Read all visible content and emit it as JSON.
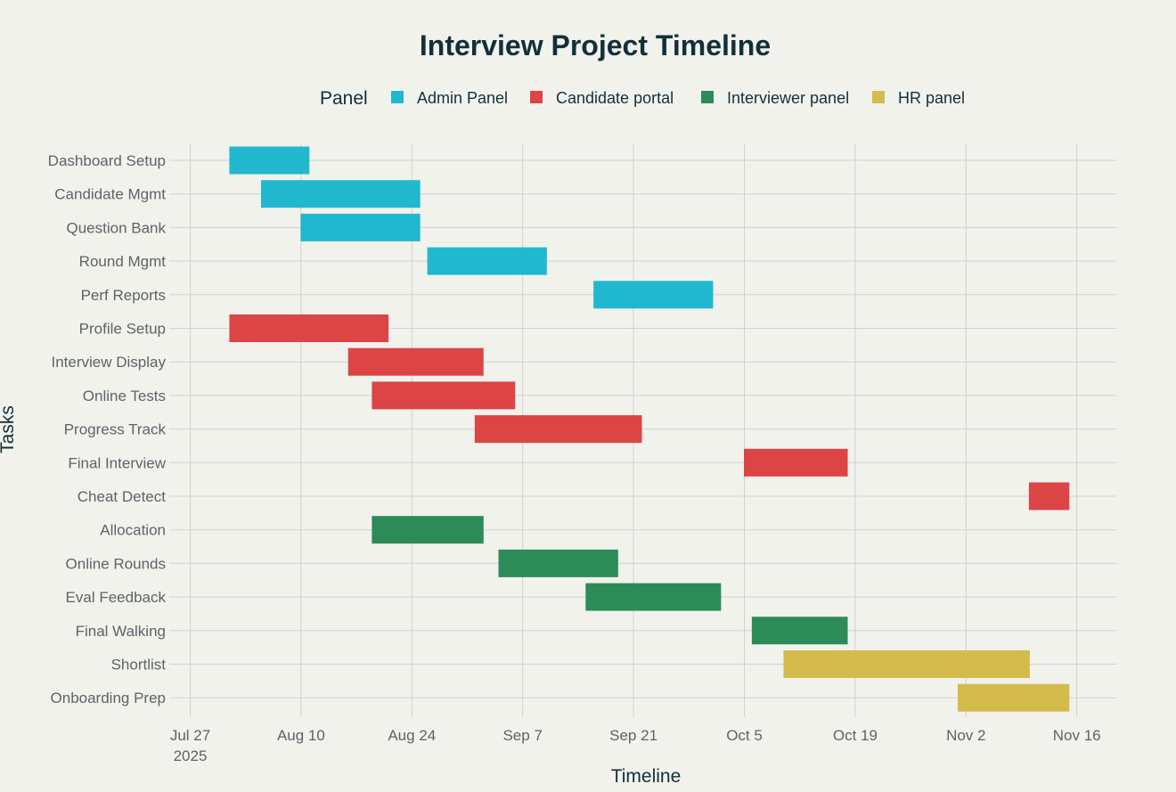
{
  "chart_data": {
    "type": "gantt",
    "title": "Interview Project Timeline",
    "xlabel": "Timeline",
    "ylabel": "Tasks",
    "legend": {
      "title": "Panel",
      "placement": "top",
      "items": [
        {
          "name": "Admin Panel",
          "color": "#21b8cf"
        },
        {
          "name": "Candidate portal",
          "color": "#dc4446"
        },
        {
          "name": "Interviewer panel",
          "color": "#2d8b57"
        },
        {
          "name": "HR panel",
          "color": "#d4bb4e"
        }
      ]
    },
    "x_ticks": [
      {
        "date": "2025-07-27",
        "label": "Jul 27",
        "sublabel": "2025"
      },
      {
        "date": "2025-08-10",
        "label": "Aug 10"
      },
      {
        "date": "2025-08-24",
        "label": "Aug 24"
      },
      {
        "date": "2025-09-07",
        "label": "Sep 7"
      },
      {
        "date": "2025-09-21",
        "label": "Sep 21"
      },
      {
        "date": "2025-10-05",
        "label": "Oct 5"
      },
      {
        "date": "2025-10-19",
        "label": "Oct 19"
      },
      {
        "date": "2025-11-02",
        "label": "Nov 2"
      },
      {
        "date": "2025-11-16",
        "label": "Nov 16"
      }
    ],
    "xlim": [
      "2025-07-25",
      "2025-11-21"
    ],
    "grid": true,
    "tasks": [
      {
        "task": "Dashboard Setup",
        "panel": "Admin Panel",
        "start": "2025-08-01",
        "end": "2025-08-11"
      },
      {
        "task": "Candidate Mgmt",
        "panel": "Admin Panel",
        "start": "2025-08-05",
        "end": "2025-08-25"
      },
      {
        "task": "Question Bank",
        "panel": "Admin Panel",
        "start": "2025-08-10",
        "end": "2025-08-25"
      },
      {
        "task": "Round Mgmt",
        "panel": "Admin Panel",
        "start": "2025-08-26",
        "end": "2025-09-10"
      },
      {
        "task": "Perf Reports",
        "panel": "Admin Panel",
        "start": "2025-09-16",
        "end": "2025-10-01"
      },
      {
        "task": "Profile Setup",
        "panel": "Candidate portal",
        "start": "2025-08-01",
        "end": "2025-08-21"
      },
      {
        "task": "Interview Display",
        "panel": "Candidate portal",
        "start": "2025-08-16",
        "end": "2025-09-02"
      },
      {
        "task": "Online Tests",
        "panel": "Candidate portal",
        "start": "2025-08-19",
        "end": "2025-09-06"
      },
      {
        "task": "Progress Track",
        "panel": "Candidate portal",
        "start": "2025-09-01",
        "end": "2025-09-22"
      },
      {
        "task": "Final Interview",
        "panel": "Candidate portal",
        "start": "2025-10-05",
        "end": "2025-10-18"
      },
      {
        "task": "Cheat Detect",
        "panel": "Candidate portal",
        "start": "2025-11-10",
        "end": "2025-11-15"
      },
      {
        "task": "Allocation",
        "panel": "Interviewer panel",
        "start": "2025-08-19",
        "end": "2025-09-02"
      },
      {
        "task": "Online Rounds",
        "panel": "Interviewer panel",
        "start": "2025-09-04",
        "end": "2025-09-19"
      },
      {
        "task": "Eval Feedback",
        "panel": "Interviewer panel",
        "start": "2025-09-15",
        "end": "2025-10-02"
      },
      {
        "task": "Final Walking",
        "panel": "Interviewer panel",
        "start": "2025-10-06",
        "end": "2025-10-18"
      },
      {
        "task": "Shortlist",
        "panel": "HR panel",
        "start": "2025-10-10",
        "end": "2025-11-10"
      },
      {
        "task": "Onboarding Prep",
        "panel": "HR panel",
        "start": "2025-11-01",
        "end": "2025-11-15"
      }
    ]
  }
}
